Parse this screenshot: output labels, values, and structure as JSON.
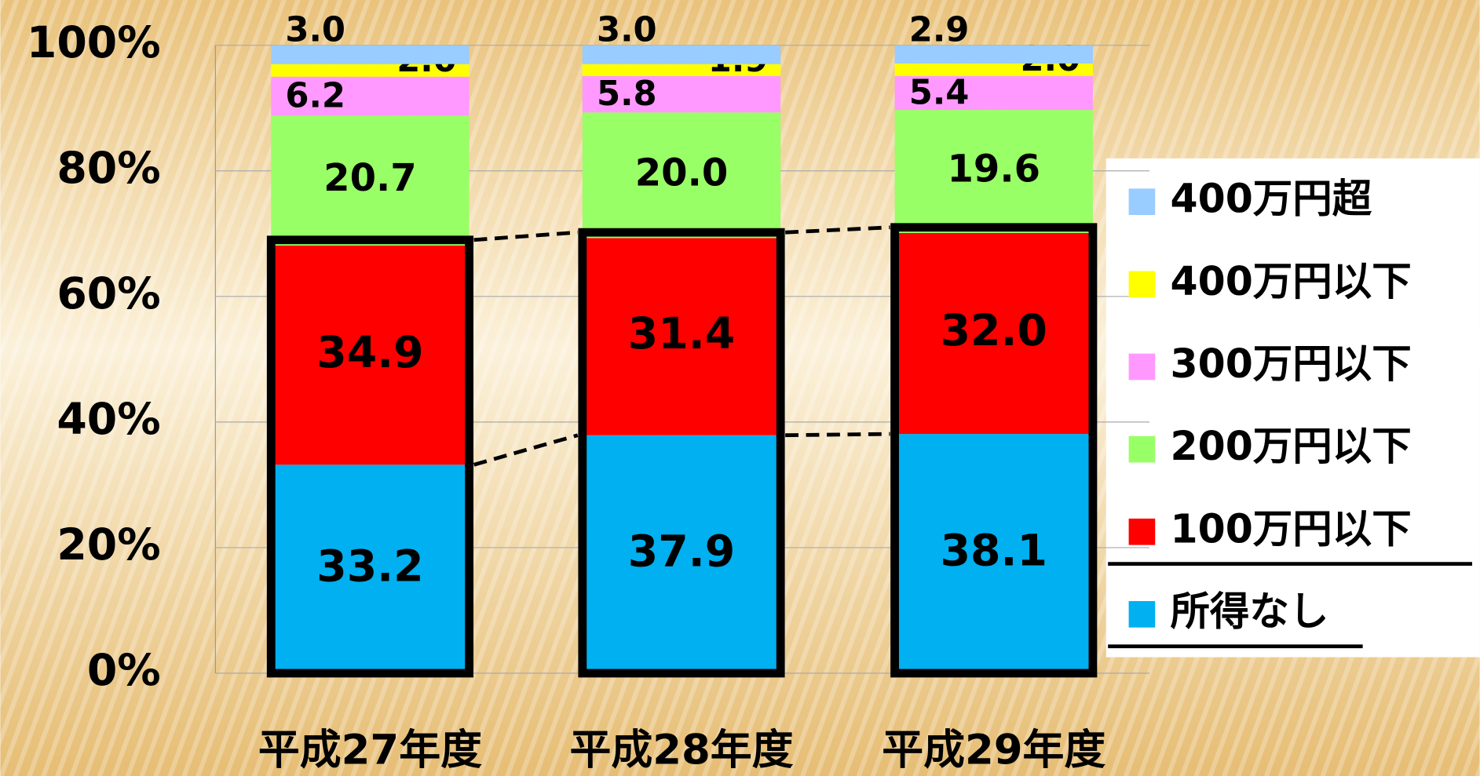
{
  "chart_data": {
    "type": "stacked_bar",
    "categories": [
      "平成27年度",
      "平成28年度",
      "平成29年度"
    ],
    "series": [
      {
        "name": "所得なし",
        "color": "#00b0f0",
        "values": [
          33.2,
          37.9,
          38.1
        ],
        "value_labels": [
          "33.2",
          "37.9",
          "38.1"
        ]
      },
      {
        "name": "100万円以下",
        "color": "#ff0000",
        "values": [
          34.9,
          31.4,
          32.0
        ],
        "value_labels": [
          "34.9",
          "31.4",
          "32.0"
        ]
      },
      {
        "name": "200万円以下",
        "color": "#99ff66",
        "values": [
          20.7,
          20.0,
          19.6
        ],
        "value_labels": [
          "20.7",
          "20.0",
          "19.6"
        ]
      },
      {
        "name": "300万円以下",
        "color": "#ff99ff",
        "values": [
          6.2,
          5.8,
          5.4
        ],
        "value_labels": [
          "6.2",
          "5.8",
          "5.4"
        ]
      },
      {
        "name": "400万円以下",
        "color": "#ffff00",
        "values": [
          2.0,
          1.9,
          2.0
        ],
        "value_labels": [
          "2.0",
          "1.9",
          "2.0"
        ]
      },
      {
        "name": "400万円超",
        "color": "#99ccff",
        "values": [
          3.0,
          3.0,
          2.9
        ],
        "value_labels": [
          "3.0",
          "3.0",
          "2.9"
        ]
      }
    ],
    "ylim": [
      0,
      100
    ],
    "yticks": [
      {
        "value": 0,
        "label": "0%"
      },
      {
        "value": 20,
        "label": "20%"
      },
      {
        "value": 40,
        "label": "40%"
      },
      {
        "value": 60,
        "label": "60%"
      },
      {
        "value": 80,
        "label": "80%"
      },
      {
        "value": 100,
        "label": "100%"
      }
    ],
    "grid": true,
    "legend": "right"
  }
}
